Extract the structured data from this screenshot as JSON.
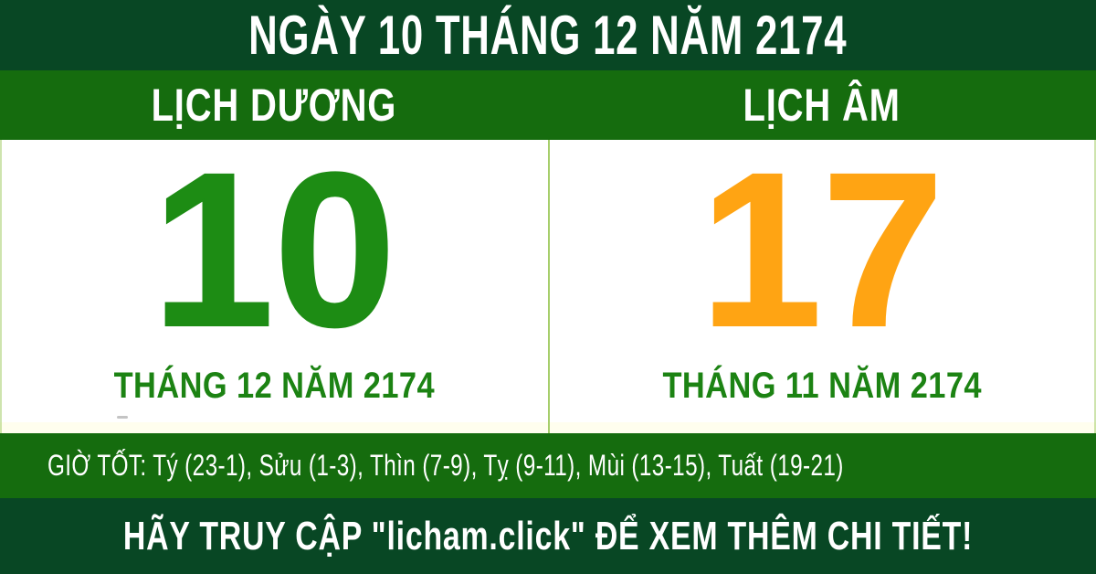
{
  "top_banner": {
    "text": "NGÀY 10 THÁNG 12 NĂM 2174"
  },
  "calendar": {
    "solar": {
      "header": "LỊCH DƯƠNG",
      "day": "10",
      "month_year": "THÁNG 12 NĂM 2174"
    },
    "lunar": {
      "header": "LỊCH ÂM",
      "day": "17",
      "month_year": "THÁNG 11 NĂM 2174"
    }
  },
  "good_hours": {
    "label": "GIỜ TỐT:",
    "text": "GIỜ TỐT: Tý (23-1), Sửu (1-3), Thìn (7-9), Tỵ (9-11), Mùi (13-15), Tuất (19-21)"
  },
  "bottom_banner": {
    "text": "HÃY TRUY CẬP \"licham.click\" ĐỂ XEM THÊM CHI TIẾT!"
  },
  "colors": {
    "dark_green_banner": "#084724",
    "band_green": "#156C0E",
    "solar_day": "#1D8C14",
    "lunar_day": "#FFA413",
    "month_text": "#1C8313",
    "divider": "#A6CE6B",
    "panel_bg": "#FFFFFF",
    "banner_text": "#FFFFFF"
  }
}
